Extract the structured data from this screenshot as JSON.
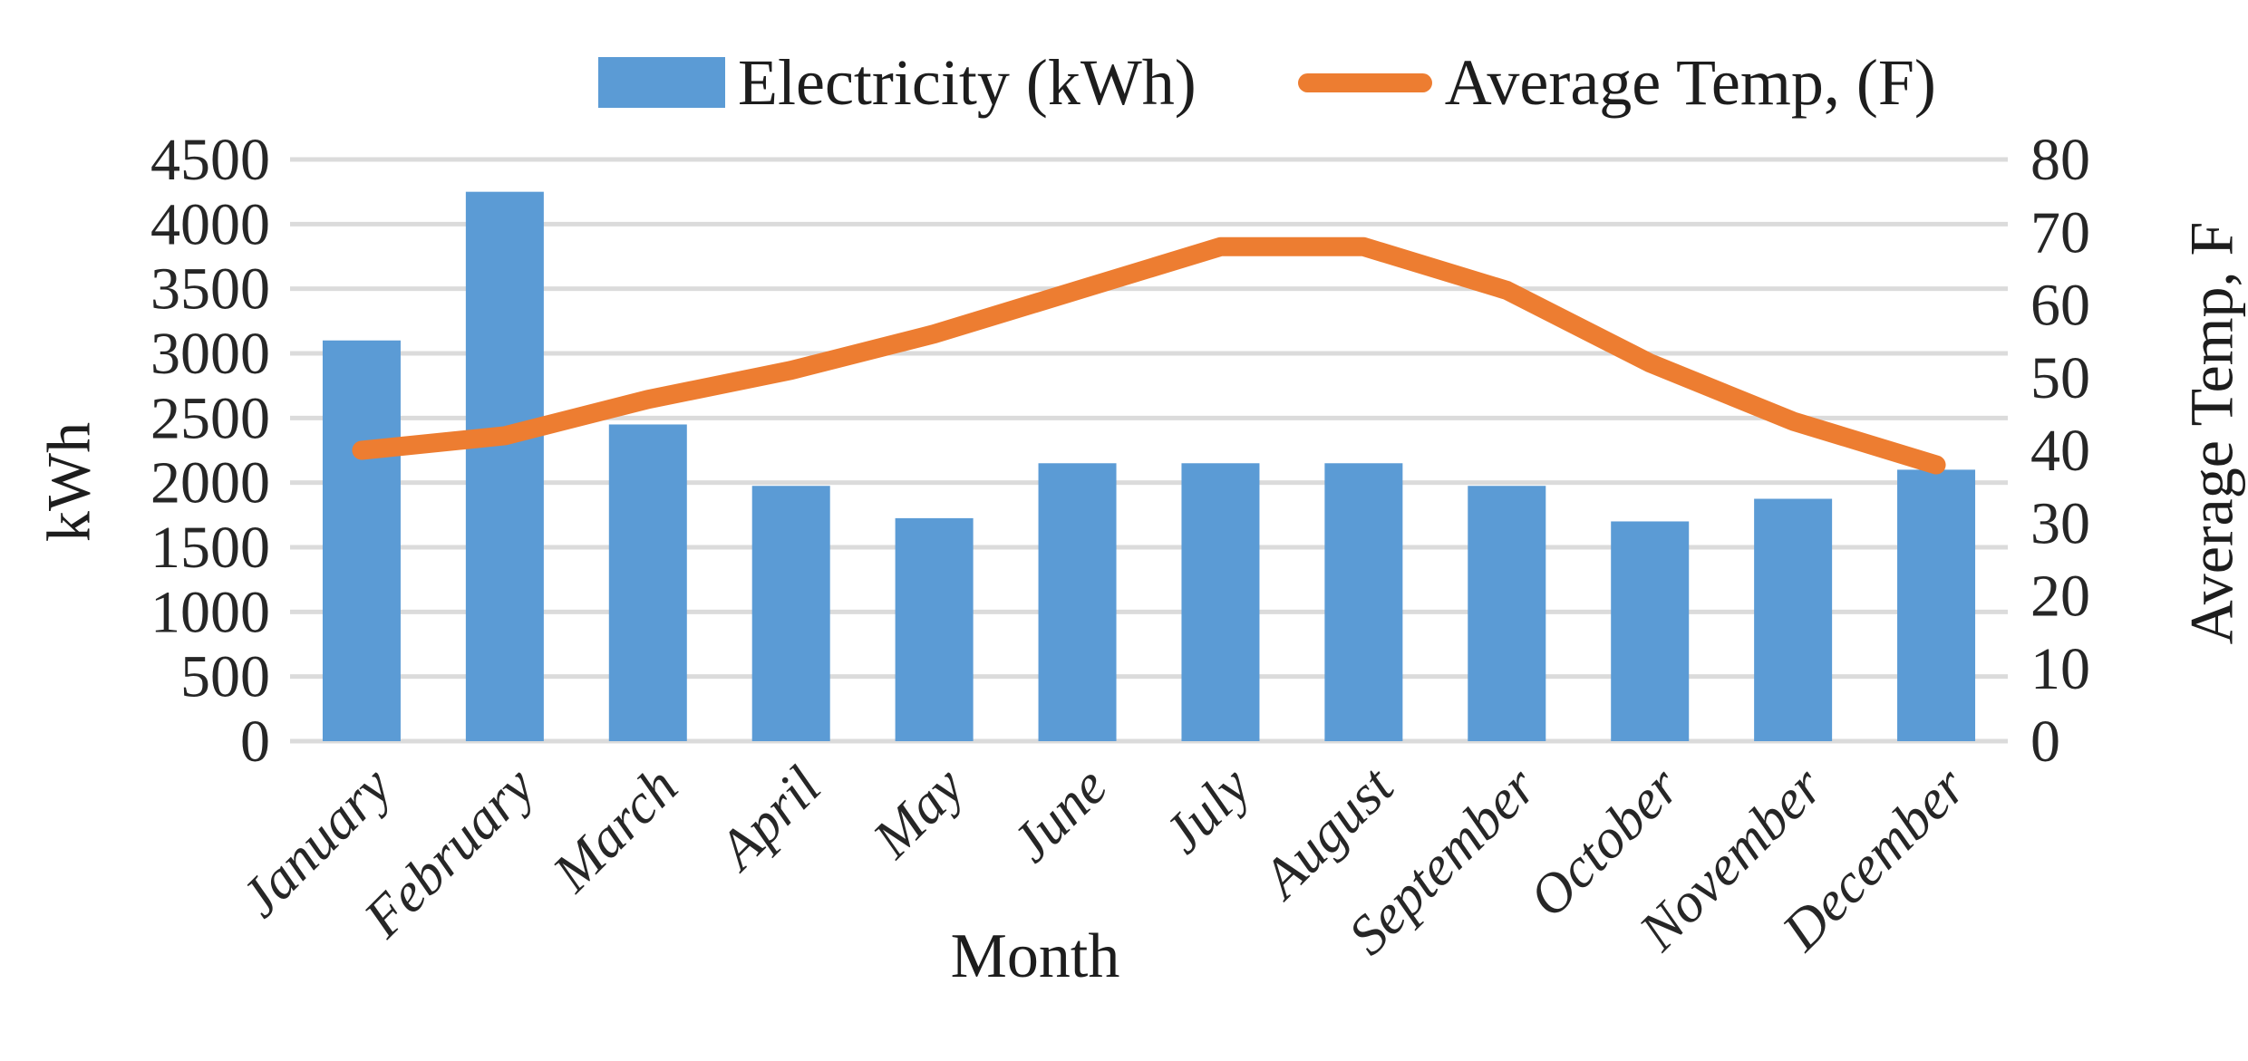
{
  "chart_data": {
    "type": "combo-bar-line",
    "title": "",
    "categories": [
      "January",
      "February",
      "March",
      "April",
      "May",
      "June",
      "July",
      "August",
      "September",
      "October",
      "November",
      "December"
    ],
    "series": [
      {
        "name": "Electricity (kWh)",
        "type": "bar",
        "axis": "left",
        "color": "#5B9BD5",
        "values": [
          3100,
          4250,
          2450,
          1975,
          1725,
          2150,
          2150,
          2150,
          1975,
          1700,
          1875,
          2100
        ]
      },
      {
        "name": "Average Temp, (F)",
        "type": "line",
        "axis": "right",
        "color": "#ED7D31",
        "values": [
          40,
          42,
          47,
          51,
          56,
          62,
          68,
          68,
          62,
          52,
          44,
          38
        ]
      }
    ],
    "left_axis": {
      "title": "kWh",
      "min": 0,
      "max": 4500,
      "step": 500,
      "tick_labels": [
        "4500",
        "4000",
        "3500",
        "3000",
        "2500",
        "2000",
        "1500",
        "1000",
        "500",
        "0"
      ]
    },
    "right_axis": {
      "title": "Average Temp, F",
      "min": 0,
      "max": 80,
      "step": 10,
      "tick_labels": [
        "80",
        "70",
        "60",
        "50",
        "40",
        "30",
        "20",
        "10",
        "0"
      ]
    },
    "x_axis": {
      "title": "Month",
      "label_rotation": -45
    },
    "legend": {
      "position": "top",
      "items": [
        {
          "label": "Electricity (kWh)",
          "swatch": "rect",
          "color": "#5B9BD5"
        },
        {
          "label": "Average Temp, (F)",
          "swatch": "line",
          "color": "#ED7D31"
        }
      ]
    },
    "grid": {
      "color": "#DBDBDB",
      "horizontal": true,
      "vertical": false
    }
  }
}
